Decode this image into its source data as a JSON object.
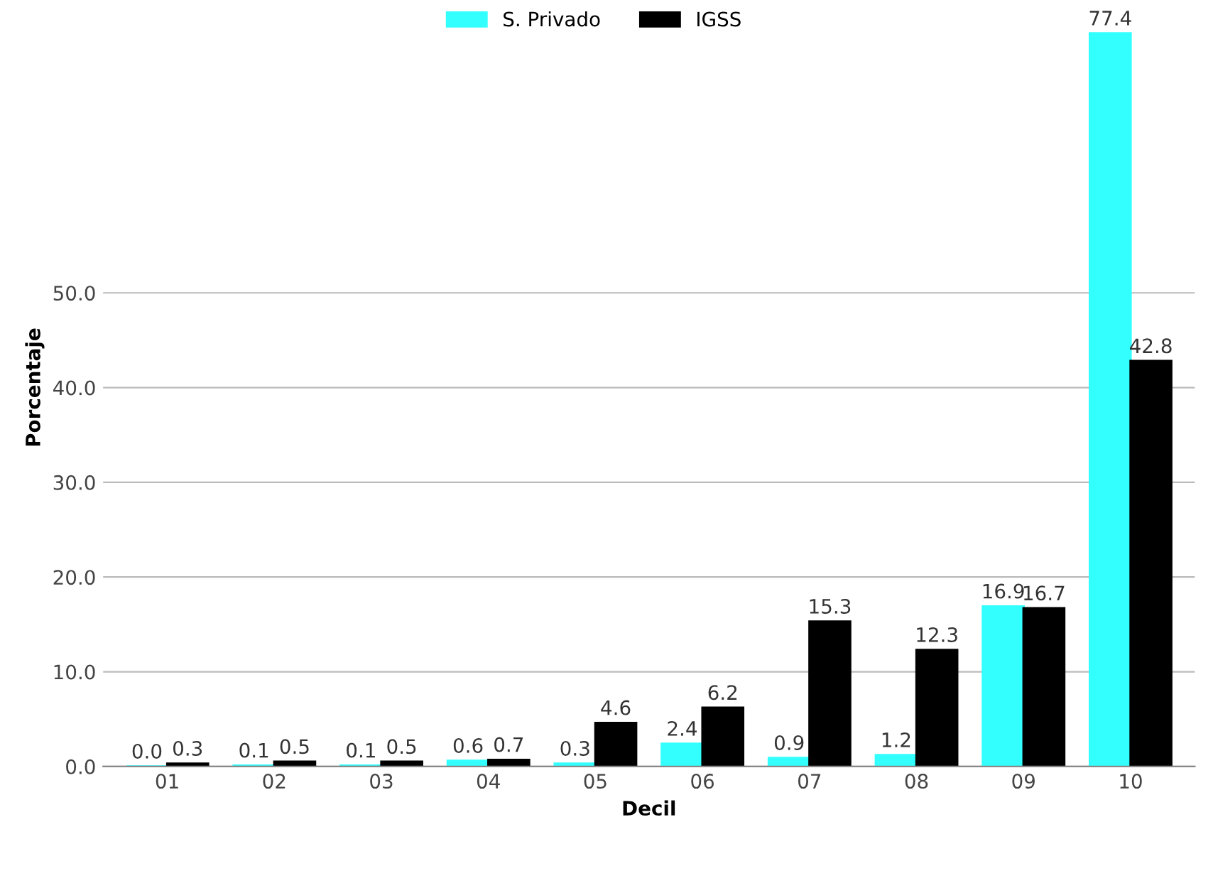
{
  "chart_data": {
    "type": "bar",
    "xlabel": "Decil",
    "ylabel": "Porcentaje",
    "categories": [
      "01",
      "02",
      "03",
      "04",
      "05",
      "06",
      "07",
      "08",
      "09",
      "10"
    ],
    "series": [
      {
        "name": "S. Privado",
        "color": "#33ffff",
        "values": [
          0.0,
          0.1,
          0.1,
          0.6,
          0.3,
          2.4,
          0.9,
          1.2,
          16.9,
          77.4
        ],
        "value_labels": [
          "0.0",
          "0.1",
          "0.1",
          "0.6",
          "0.3",
          "2.4",
          "0.9",
          "1.2",
          "16.9",
          "77.4"
        ]
      },
      {
        "name": "IGSS",
        "color": "#000000",
        "values": [
          0.3,
          0.5,
          0.5,
          0.7,
          4.6,
          6.2,
          15.3,
          12.3,
          16.7,
          42.8
        ],
        "value_labels": [
          "0.3",
          "0.5",
          "0.5",
          "0.7",
          "4.6",
          "6.2",
          "15.3",
          "12.3",
          "16.7",
          "42.8"
        ]
      }
    ],
    "ylim": [
      0,
      80
    ],
    "yticks": [
      {
        "value": 0,
        "label": "0.0"
      },
      {
        "value": 10,
        "label": "10.0"
      },
      {
        "value": 20,
        "label": "20.0"
      },
      {
        "value": 30,
        "label": "30.0"
      },
      {
        "value": 40,
        "label": "40.0"
      },
      {
        "value": 50,
        "label": "50.0"
      }
    ],
    "grid": "y",
    "legend": "top"
  }
}
